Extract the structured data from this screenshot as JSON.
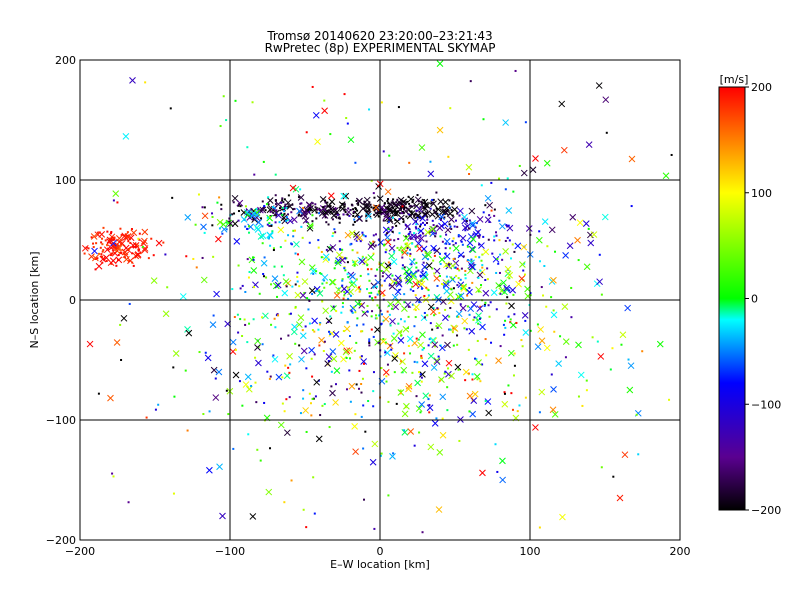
{
  "chart_data": {
    "type": "scatter",
    "title": "Tromsø 20140620 23:20:00–23:21:43",
    "subtitle": "RwPretec (8p) EXPERIMENTAL SKYMAP",
    "xlabel": "E–W location [km]",
    "ylabel": "N–S location [km]",
    "xlim": [
      -200,
      200
    ],
    "ylim": [
      -200,
      200
    ],
    "x_ticks": [
      "−200",
      "−100",
      "0",
      "100",
      "200"
    ],
    "y_ticks": [
      "−200",
      "−100",
      "0",
      "100",
      "200"
    ],
    "grid": true,
    "markers": [
      "cross",
      "dot"
    ],
    "colorbar": {
      "label": "[m/s]",
      "range": [
        -200,
        200
      ],
      "ticks": [
        "200",
        "100",
        "0",
        "−100",
        "−200"
      ],
      "colors": [
        "#000000",
        "#5a0090",
        "#0000ff",
        "#00ffff",
        "#00ff00",
        "#ffff00",
        "#ff0000"
      ]
    },
    "clusters": [
      {
        "x": -175,
        "y": 45,
        "sx": 12,
        "sy": 8,
        "n": 140,
        "v": 190,
        "vs": 15
      },
      {
        "x": 10,
        "y": 75,
        "sx": 25,
        "sy": 6,
        "n": 230,
        "v": -195,
        "vs": 10
      },
      {
        "x": -60,
        "y": 75,
        "sx": 30,
        "sy": 6,
        "n": 160,
        "v": -180,
        "vs": 25
      },
      {
        "x": 40,
        "y": 55,
        "sx": 30,
        "sy": 12,
        "n": 180,
        "v": -120,
        "vs": 40
      },
      {
        "x": -80,
        "y": 65,
        "sx": 18,
        "sy": 8,
        "n": 70,
        "v": -30,
        "vs": 40
      },
      {
        "x": 20,
        "y": 15,
        "sx": 45,
        "sy": 25,
        "n": 500,
        "v": 0,
        "vs": 90
      },
      {
        "x": 0,
        "y": -40,
        "sx": 60,
        "sy": 40,
        "n": 420,
        "v": 0,
        "vs": 110
      },
      {
        "x": 0,
        "y": 0,
        "sx": 130,
        "sy": 120,
        "n": 360,
        "v": 0,
        "vs": 130
      }
    ],
    "sample_points": [
      {
        "x": -180,
        "y": 50,
        "v": 195,
        "m": "cross"
      },
      {
        "x": -170,
        "y": 40,
        "v": 185,
        "m": "cross"
      },
      {
        "x": 10,
        "y": 75,
        "v": -200,
        "m": "cross"
      },
      {
        "x": 25,
        "y": 70,
        "v": -195,
        "m": "cross"
      },
      {
        "x": -60,
        "y": 78,
        "v": -190,
        "m": "cross"
      },
      {
        "x": 40,
        "y": 20,
        "v": 10,
        "m": "dot"
      },
      {
        "x": -20,
        "y": -30,
        "v": -60,
        "m": "dot"
      },
      {
        "x": 60,
        "y": -80,
        "v": 150,
        "m": "cross"
      },
      {
        "x": -165,
        "y": 183,
        "v": -120,
        "m": "cross"
      },
      {
        "x": 40,
        "y": 197,
        "v": 0,
        "m": "cross"
      },
      {
        "x": -105,
        "y": -180,
        "v": -120,
        "m": "cross"
      },
      {
        "x": 160,
        "y": -165,
        "v": 190,
        "m": "cross"
      }
    ]
  }
}
